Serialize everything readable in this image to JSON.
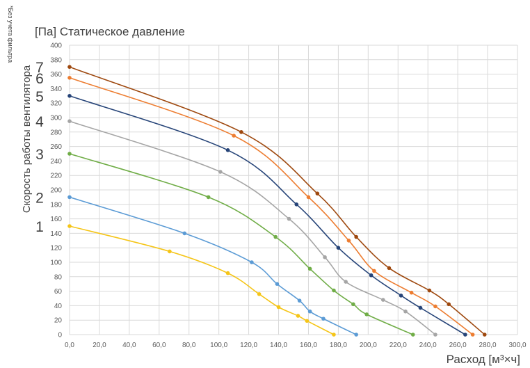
{
  "chart_data": {
    "type": "line",
    "title": "[Па] Статическое давление",
    "xlabel": "Расход [м³×ч]",
    "ylabel": "Скорость работы вентилятора",
    "note": "*Без учета фильтра",
    "xlim": [
      0,
      300
    ],
    "ylim": [
      0,
      400
    ],
    "x_ticks": [
      "0,0",
      "20,0",
      "40,0",
      "60,0",
      "80,0",
      "100,0",
      "120,0",
      "140,0",
      "160,0",
      "180,0",
      "200,0",
      "220,0",
      "240,0",
      "260,0",
      "280,0",
      "300,0"
    ],
    "y_ticks": [
      "0",
      "20",
      "40",
      "60",
      "80",
      "100",
      "120",
      "140",
      "160",
      "180",
      "200",
      "220",
      "240",
      "260",
      "280",
      "300",
      "320",
      "340",
      "360",
      "380",
      "400"
    ],
    "grid": true,
    "series": [
      {
        "name": "1",
        "color": "#f5c518",
        "points": [
          [
            0,
            150
          ],
          [
            67,
            115
          ],
          [
            106,
            85
          ],
          [
            127,
            56
          ],
          [
            140,
            38
          ],
          [
            153,
            26
          ],
          [
            159,
            19
          ],
          [
            177,
            0
          ]
        ]
      },
      {
        "name": "2",
        "color": "#5b9bd5",
        "points": [
          [
            0,
            190
          ],
          [
            77,
            140
          ],
          [
            122,
            100
          ],
          [
            139,
            70
          ],
          [
            154,
            47
          ],
          [
            161,
            32
          ],
          [
            170,
            22
          ],
          [
            192,
            0
          ]
        ]
      },
      {
        "name": "3",
        "color": "#70ad47",
        "points": [
          [
            0,
            250
          ],
          [
            93,
            190
          ],
          [
            138,
            135
          ],
          [
            161,
            91
          ],
          [
            177,
            61
          ],
          [
            190,
            42
          ],
          [
            199,
            28
          ],
          [
            230,
            0
          ]
        ]
      },
      {
        "name": "4",
        "color": "#a5a5a5",
        "points": [
          [
            0,
            295
          ],
          [
            101,
            225
          ],
          [
            147,
            160
          ],
          [
            171,
            107
          ],
          [
            185,
            73
          ],
          [
            210,
            48
          ],
          [
            225,
            32
          ],
          [
            245,
            0
          ]
        ]
      },
      {
        "name": "5",
        "color": "#264478",
        "points": [
          [
            0,
            330
          ],
          [
            106,
            255
          ],
          [
            152,
            180
          ],
          [
            180,
            120
          ],
          [
            202,
            82
          ],
          [
            222,
            54
          ],
          [
            235,
            37
          ],
          [
            265,
            0
          ]
        ]
      },
      {
        "name": "6",
        "color": "#ed7d31",
        "points": [
          [
            0,
            355
          ],
          [
            110,
            275
          ],
          [
            160,
            190
          ],
          [
            187,
            130
          ],
          [
            204,
            88
          ],
          [
            229,
            58
          ],
          [
            245,
            39
          ],
          [
            270,
            0
          ]
        ]
      },
      {
        "name": "7",
        "color": "#9e480e",
        "points": [
          [
            0,
            370
          ],
          [
            115,
            280
          ],
          [
            166,
            195
          ],
          [
            192,
            135
          ],
          [
            214,
            92
          ],
          [
            241,
            61
          ],
          [
            254,
            42
          ],
          [
            278,
            0
          ]
        ]
      }
    ]
  }
}
